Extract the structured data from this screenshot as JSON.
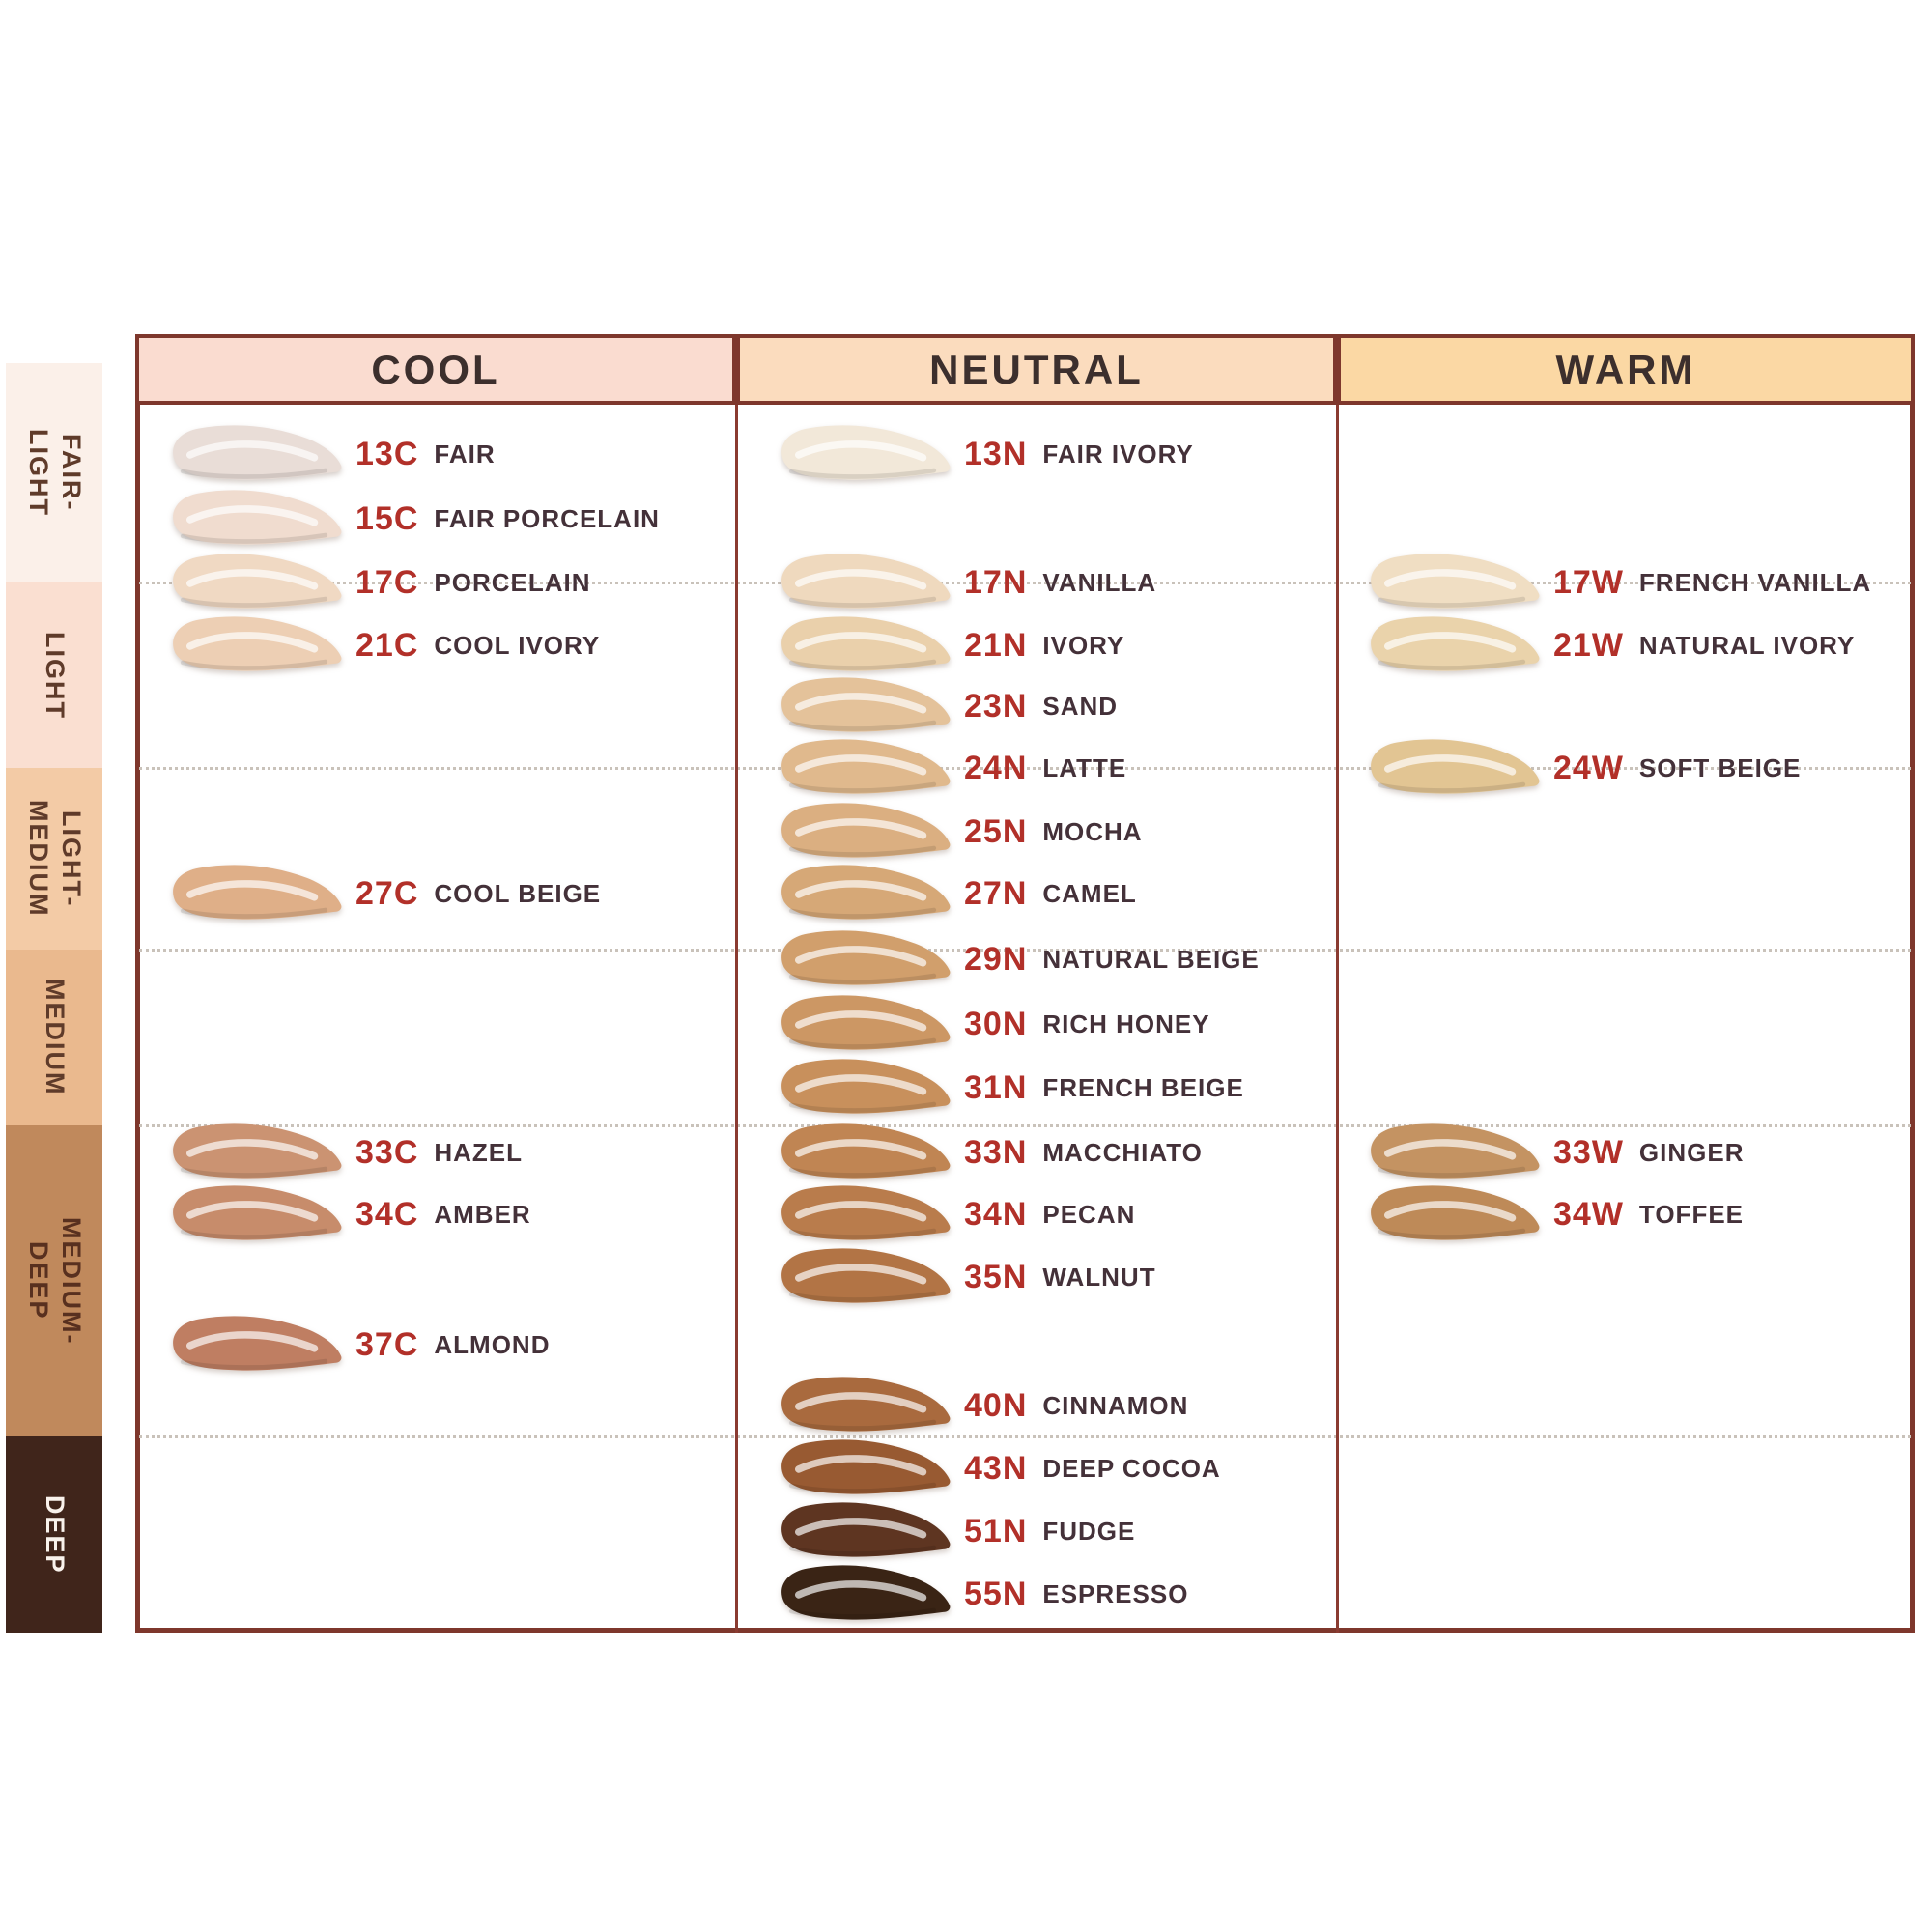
{
  "chart_data": {
    "type": "table",
    "title": "Foundation shade chart by undertone and depth",
    "row_groups": [
      "FAIR-LIGHT",
      "LIGHT",
      "LIGHT-MEDIUM",
      "MEDIUM",
      "MEDIUM-DEEP",
      "DEEP"
    ],
    "column_headers": [
      "COOL",
      "NEUTRAL",
      "WARM"
    ],
    "shades": {
      "cool": [
        "13C FAIR",
        "15C FAIR PORCELAIN",
        "17C PORCELAIN",
        "21C COOL IVORY",
        "27C COOL BEIGE",
        "33C HAZEL",
        "34C AMBER",
        "37C ALMOND"
      ],
      "neutral": [
        "13N FAIR IVORY",
        "17N VANILLA",
        "21N IVORY",
        "23N SAND",
        "24N LATTE",
        "25N MOCHA",
        "27N CAMEL",
        "29N NATURAL BEIGE",
        "30N RICH HONEY",
        "31N FRENCH BEIGE",
        "33N MACCHIATO",
        "34N PECAN",
        "35N WALNUT",
        "40N CINNAMON",
        "43N DEEP COCOA",
        "51N FUDGE",
        "55N ESPRESSO"
      ],
      "warm": [
        "17W FRENCH VANILLA",
        "21W NATURAL IVORY",
        "24W SOFT BEIGE",
        "33W GINGER",
        "34W TOFFEE"
      ]
    }
  },
  "sidebar": {
    "sections": [
      {
        "label": "FAIR-\nLIGHT",
        "bg": "#FBF0E9",
        "fg": "#5F3B2A"
      },
      {
        "label": "LIGHT",
        "bg": "#FADFD1",
        "fg": "#5F3B2A"
      },
      {
        "label": "LIGHT-\nMEDIUM",
        "bg": "#F3CBA6",
        "fg": "#5F3B2A"
      },
      {
        "label": "MEDIUM",
        "bg": "#EAB98E",
        "fg": "#5F3B2A"
      },
      {
        "label": "MEDIUM-\nDEEP",
        "bg": "#C0895C",
        "fg": "#58301F"
      },
      {
        "label": "DEEP",
        "bg": "#40251B",
        "fg": "#F9F2EC"
      }
    ]
  },
  "columns": [
    {
      "title": "COOL",
      "header_bg": "#FADCD0",
      "shades": [
        {
          "code": "13C",
          "name": "FAIR",
          "color": "#E9DDD7"
        },
        {
          "code": "15C",
          "name": "FAIR PORCELAIN",
          "color": "#F0DCCF"
        },
        {
          "code": "17C",
          "name": "PORCELAIN",
          "color": "#F0D9C3"
        },
        {
          "code": "21C",
          "name": "COOL IVORY",
          "color": "#EDCFB4"
        },
        {
          "code": "27C",
          "name": "COOL BEIGE",
          "color": "#DFAF88"
        },
        {
          "code": "33C",
          "name": "HAZEL",
          "color": "#CB9372"
        },
        {
          "code": "34C",
          "name": "AMBER",
          "color": "#C78C6B"
        },
        {
          "code": "37C",
          "name": "ALMOND",
          "color": "#BF7E62"
        }
      ]
    },
    {
      "title": "NEUTRAL",
      "header_bg": "#FBDCBE",
      "shades": [
        {
          "code": "13N",
          "name": "FAIR IVORY",
          "color": "#F2E8D9"
        },
        {
          "code": "17N",
          "name": "VANILLA",
          "color": "#EFD9BE"
        },
        {
          "code": "21N",
          "name": "IVORY",
          "color": "#EAD0AB"
        },
        {
          "code": "23N",
          "name": "SAND",
          "color": "#E4C29A"
        },
        {
          "code": "24N",
          "name": "LATTE",
          "color": "#E0B98D"
        },
        {
          "code": "25N",
          "name": "MOCHA",
          "color": "#DBAF81"
        },
        {
          "code": "27N",
          "name": "CAMEL",
          "color": "#D6A877"
        },
        {
          "code": "29N",
          "name": "NATURAL BEIGE",
          "color": "#D19F6C"
        },
        {
          "code": "30N",
          "name": "RICH HONEY",
          "color": "#CC9764"
        },
        {
          "code": "31N",
          "name": "FRENCH BEIGE",
          "color": "#C8905C"
        },
        {
          "code": "33N",
          "name": "MACCHIATO",
          "color": "#C08553"
        },
        {
          "code": "34N",
          "name": "PECAN",
          "color": "#B97C4C"
        },
        {
          "code": "35N",
          "name": "WALNUT",
          "color": "#B27445"
        },
        {
          "code": "40N",
          "name": "CINNAMON",
          "color": "#A96A3E"
        },
        {
          "code": "43N",
          "name": "DEEP COCOA",
          "color": "#985A32"
        },
        {
          "code": "51N",
          "name": "FUDGE",
          "color": "#5E3521"
        },
        {
          "code": "55N",
          "name": "ESPRESSO",
          "color": "#3A2415"
        }
      ]
    },
    {
      "title": "WARM",
      "header_bg": "#FBD8A4",
      "shades": [
        {
          "code": "17W",
          "name": "FRENCH VANILLA",
          "color": "#F0DEC3"
        },
        {
          "code": "21W",
          "name": "NATURAL IVORY",
          "color": "#EAD3AB"
        },
        {
          "code": "24W",
          "name": "SOFT BEIGE",
          "color": "#E2C593"
        },
        {
          "code": "33W",
          "name": "GINGER",
          "color": "#C49362"
        },
        {
          "code": "34W",
          "name": "TOFFEE",
          "color": "#BE8A58"
        }
      ]
    }
  ],
  "colors": {
    "frame_border": "#7E372C",
    "code_red": "#B23029",
    "name_dark": "#443139",
    "dotted_gray": "#C9C2BA",
    "header_text": "#3C2F2D"
  }
}
